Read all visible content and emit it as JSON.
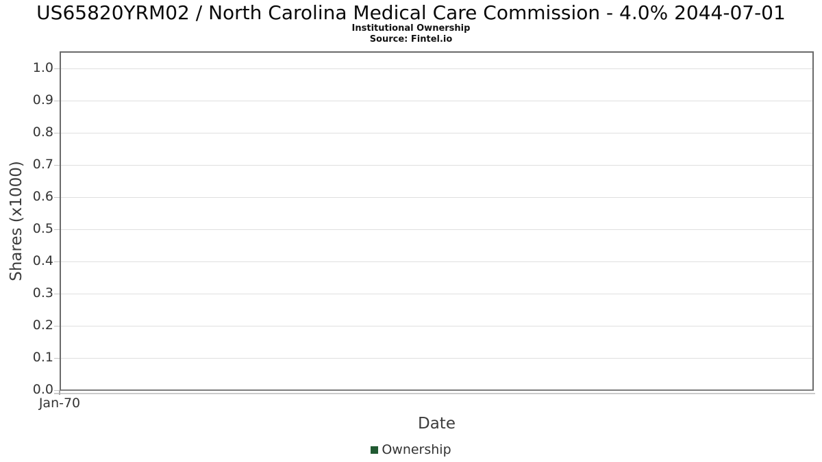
{
  "chart_data": {
    "type": "line",
    "title": "US65820YRM02 / North Carolina Medical Care Commission - 4.0% 2044-07-01",
    "subtitle": "Institutional Ownership",
    "source": "Source: Fintel.io",
    "xlabel": "Date",
    "ylabel": "Shares (x1000)",
    "x_tick_labels": [
      "Jan-70"
    ],
    "y_tick_labels": [
      "1.0",
      "0.9",
      "0.8",
      "0.7",
      "0.6",
      "0.5",
      "0.4",
      "0.3",
      "0.2",
      "0.1",
      "0.0"
    ],
    "ylim": [
      0.0,
      1.05
    ],
    "grid": true,
    "legend_position": "bottom",
    "series": [
      {
        "name": "Ownership",
        "color": "#215a32",
        "x": [],
        "values": []
      }
    ],
    "colors": {
      "title_text": "#0a0a0a",
      "tick_text": "#333333",
      "axis_title_text": "#3c3c3c",
      "gridline": "#dfdfdf",
      "plot_border": "#6a6a6a",
      "legend_swatch": "#215a32",
      "background": "#ffffff"
    }
  }
}
